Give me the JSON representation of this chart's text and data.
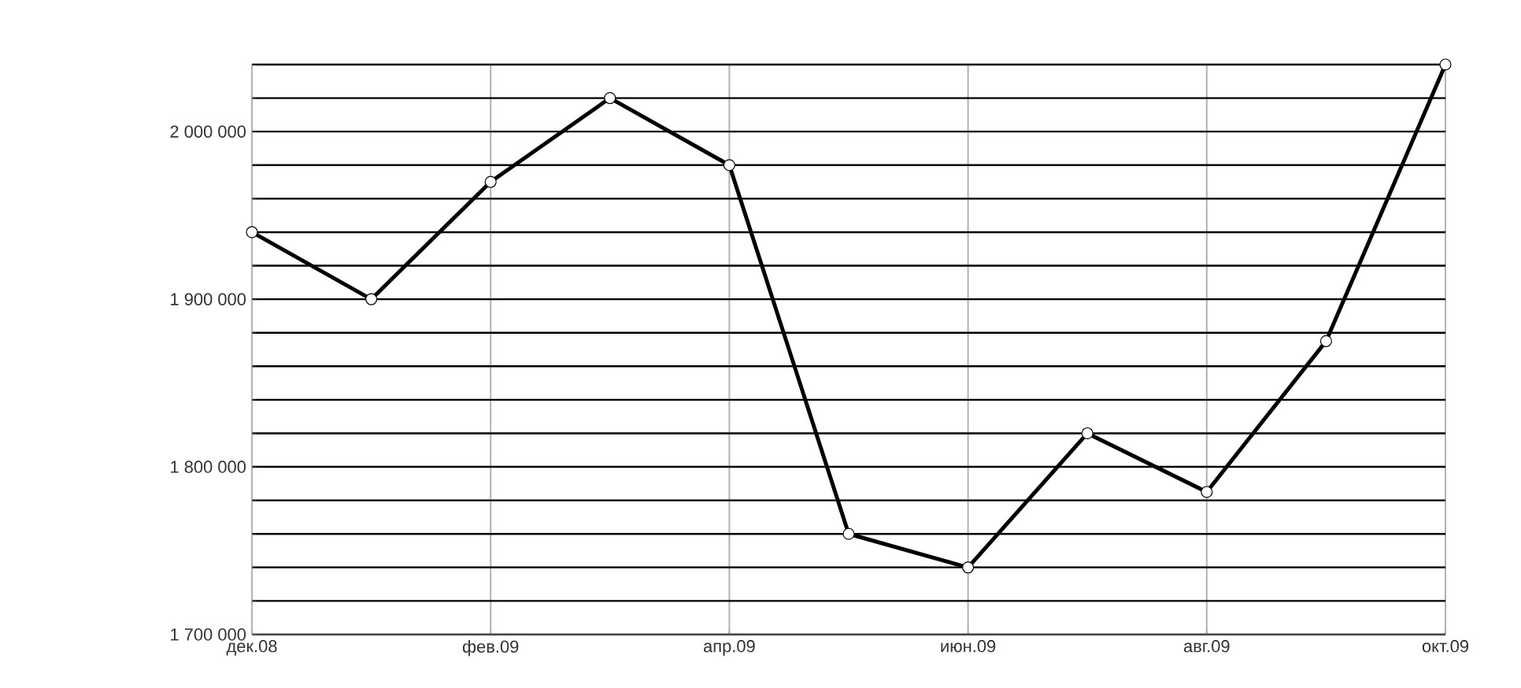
{
  "chart_data": {
    "type": "line",
    "categories": [
      "дек.08",
      null,
      "фев.09",
      null,
      "апр.09",
      null,
      "июн.09",
      null,
      "авг.09",
      null,
      "окт.09"
    ],
    "values": [
      1940000,
      1900000,
      1970000,
      2020000,
      1980000,
      1760000,
      1740000,
      1820000,
      1785000,
      1875000,
      2040000
    ],
    "color": "#000000",
    "ylim": [
      1700000,
      2040000
    ],
    "yticks": [
      {
        "value": 1700000,
        "label": "1 700 000"
      },
      {
        "value": 1720000,
        "label": null
      },
      {
        "value": 1740000,
        "label": null
      },
      {
        "value": 1760000,
        "label": null
      },
      {
        "value": 1780000,
        "label": null
      },
      {
        "value": 1800000,
        "label": "1 800 000"
      },
      {
        "value": 1820000,
        "label": null
      },
      {
        "value": 1840000,
        "label": null
      },
      {
        "value": 1860000,
        "label": null
      },
      {
        "value": 1880000,
        "label": null
      },
      {
        "value": 1900000,
        "label": "1 900 000"
      },
      {
        "value": 1920000,
        "label": null
      },
      {
        "value": 1940000,
        "label": null
      },
      {
        "value": 1960000,
        "label": null
      },
      {
        "value": 1980000,
        "label": null
      },
      {
        "value": 2000000,
        "label": "2 000 000"
      },
      {
        "value": 2020000,
        "label": null
      },
      {
        "value": 2040000,
        "label": null
      }
    ],
    "grid": true,
    "marker": "circle",
    "line_style": "solid"
  }
}
